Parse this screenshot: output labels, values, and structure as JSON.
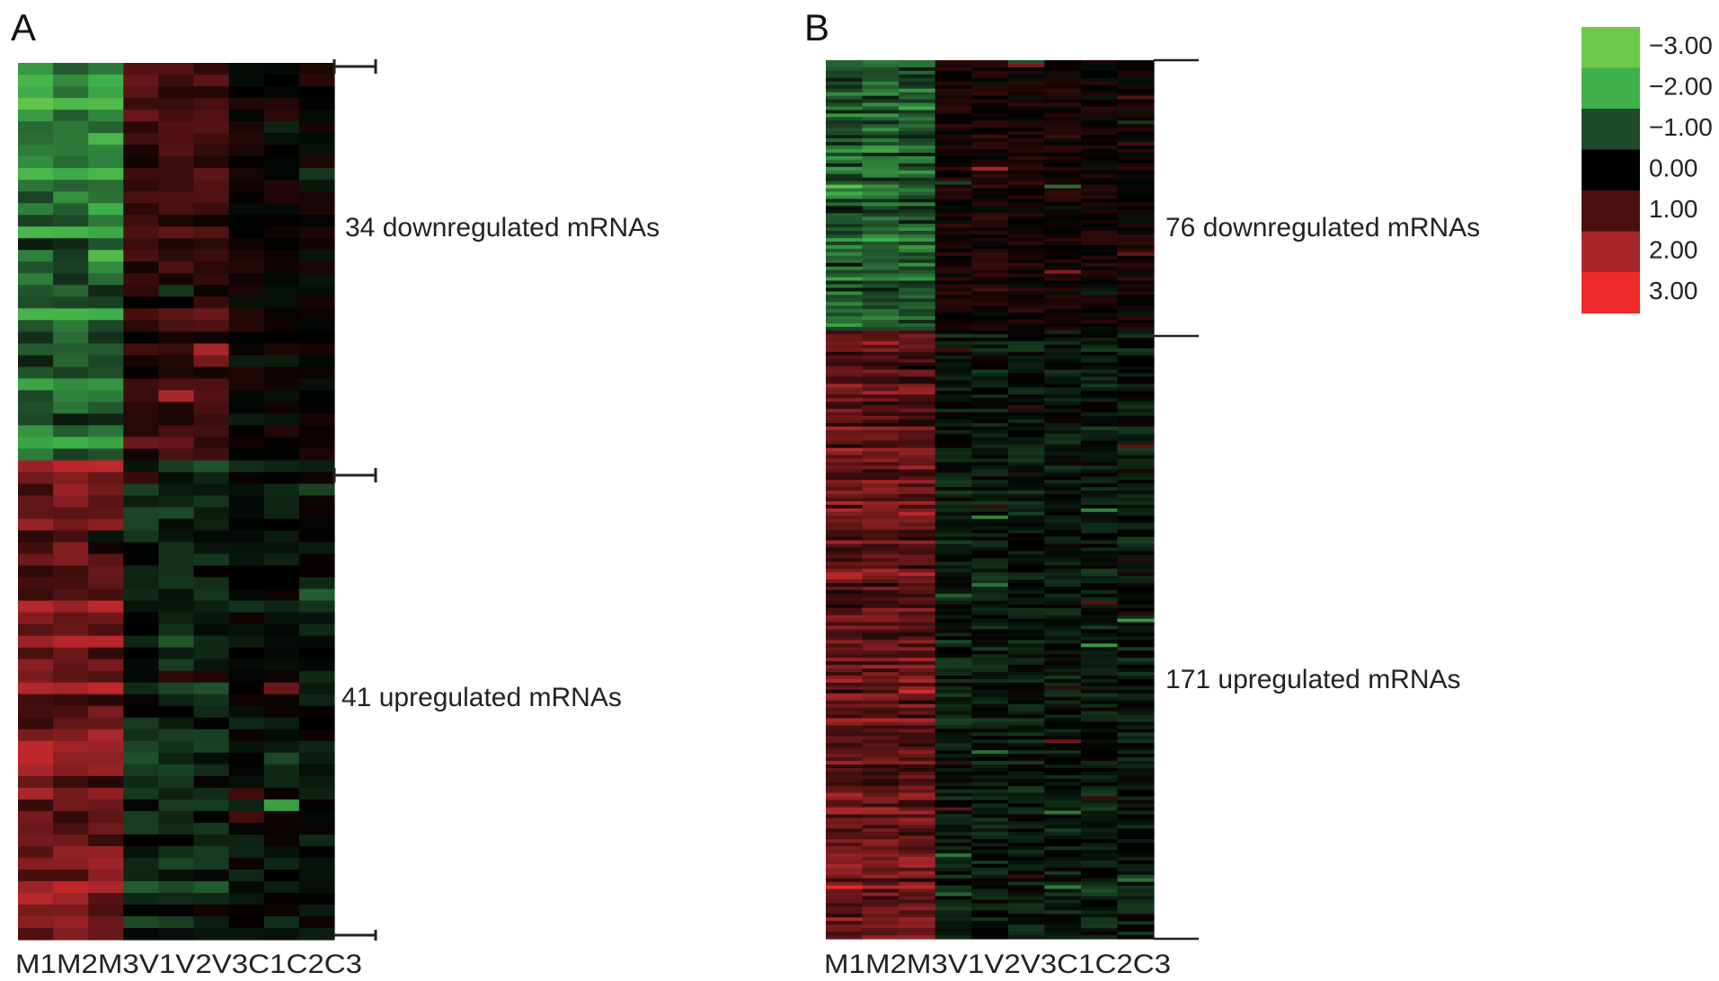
{
  "chart_data": {
    "type": "heatmap",
    "color_scale": {
      "ticks": [
        "−3.00",
        "−2.00",
        "−1.00",
        "0.00",
        "1.00",
        "2.00",
        "3.00"
      ],
      "values": [
        -3,
        -2,
        -1,
        0,
        1,
        2,
        3
      ],
      "colors": [
        "#6cc94a",
        "#3fb04a",
        "#1e4b2a",
        "#000000",
        "#4a1010",
        "#a8262b",
        "#ee2a2a"
      ]
    },
    "panels": [
      {
        "panel_label": "A",
        "columns": [
          "M1",
          "M2",
          "M3",
          "V1",
          "V2",
          "V3",
          "C1",
          "C2",
          "C3"
        ],
        "column_label_text": "M1M2M3V1V2V3C1C2C3",
        "groups": [
          {
            "label": "34 downregulated mRNAs",
            "count": 34
          },
          {
            "label": "41 upregulated mRNAs",
            "count": 41
          }
        ],
        "row_pattern": {
          "downregulated": {
            "M": -1.4,
            "V": 0.7,
            "C": 0.1
          },
          "upregulated": {
            "M": 1.5,
            "V": -0.5,
            "C": -0.2
          }
        }
      },
      {
        "panel_label": "B",
        "columns": [
          "M1",
          "M2",
          "M3",
          "V1",
          "V2",
          "V3",
          "C1",
          "C2",
          "C3"
        ],
        "column_label_text": "M1M2M3V1V2V3C1C2C3",
        "groups": [
          {
            "label": "76 downregulated mRNAs",
            "count": 76
          },
          {
            "label": "171 upregulated mRNAs",
            "count": 171
          }
        ],
        "row_pattern": {
          "downregulated": {
            "M": -1.1,
            "V": 0.3,
            "C": 0.2
          },
          "upregulated": {
            "M": 1.3,
            "V": -0.3,
            "C": -0.3
          }
        }
      }
    ]
  }
}
